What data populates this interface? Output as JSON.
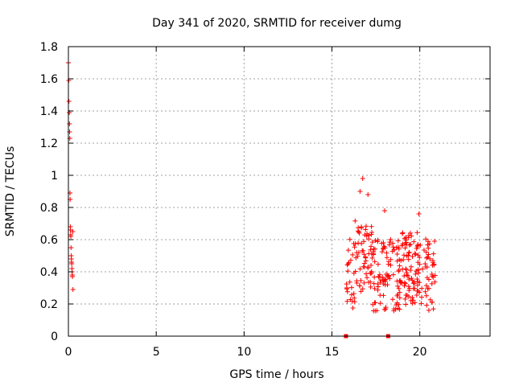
{
  "chart_data": {
    "type": "scatter",
    "title": "Day 341 of 2020, SRMTID for receiver dumg",
    "xlabel": "GPS time / hours",
    "ylabel": "SRMTID / TECUs",
    "xlim": [
      0,
      24
    ],
    "ylim": [
      0,
      1.8
    ],
    "grid": true,
    "marker": "+",
    "marker_color": "#ff0000",
    "x_ticks": [
      0,
      5,
      10,
      15,
      20
    ],
    "x_tick_labels": [
      "0",
      "5",
      "10",
      "15",
      "20"
    ],
    "y_ticks": [
      0,
      0.2,
      0.4,
      0.6,
      0.8,
      1.0,
      1.2,
      1.4,
      1.6,
      1.8
    ],
    "y_tick_labels": [
      "0",
      "0.2",
      "0.4",
      "0.6",
      "0.8",
      "1",
      "1.2",
      "1.4",
      "1.6",
      "1.8"
    ],
    "series": [
      {
        "name": "SRMTID",
        "x": [
          0.0,
          0.02,
          0.03,
          0.05,
          0.06,
          0.07,
          0.08,
          0.09,
          0.1,
          0.11,
          0.12,
          0.13,
          0.14,
          0.15,
          0.16,
          0.17,
          0.18,
          0.19,
          0.2,
          0.21,
          0.22,
          0.23,
          0.25,
          0.26
        ],
        "y": [
          1.7,
          1.59,
          1.46,
          1.39,
          1.32,
          1.27,
          1.23,
          0.89,
          0.85,
          0.68,
          0.66,
          0.63,
          0.62,
          0.55,
          0.5,
          0.48,
          0.46,
          0.45,
          0.42,
          0.4,
          0.38,
          0.37,
          0.65,
          0.29
        ]
      }
    ],
    "zero_markers_x": [
      15.8,
      18.2
    ],
    "cluster": {
      "x_range": [
        15.8,
        20.9
      ],
      "typical_range": [
        0.1,
        0.65
      ],
      "peaks": [
        {
          "x": 16.75,
          "y": 0.98
        },
        {
          "x": 16.6,
          "y": 0.9
        },
        {
          "x": 17.05,
          "y": 0.88
        },
        {
          "x": 18.0,
          "y": 0.78
        },
        {
          "x": 19.95,
          "y": 0.76
        }
      ]
    }
  }
}
